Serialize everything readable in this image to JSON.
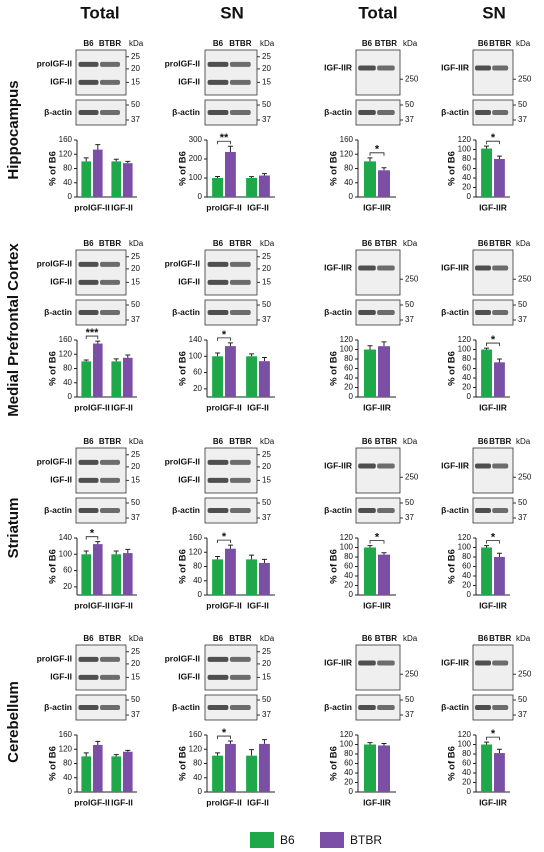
{
  "header": {
    "columns": [
      "Total",
      "SN",
      "Total",
      "SN"
    ]
  },
  "rows": [
    "Hippocampus",
    "Medial Prefrontal Cortex",
    "Striatum",
    "Cerebellum"
  ],
  "blots": [
    {
      "lanes": [
        "B6",
        "BTBR"
      ],
      "unit": "kDa",
      "panels": [
        {
          "labels": [
            "proIGF-II",
            "IGF-II"
          ],
          "markers": [
            25,
            20,
            15
          ]
        },
        {
          "labels": [
            "β-actin"
          ],
          "markers": [
            50,
            37
          ]
        }
      ]
    },
    {
      "lanes": [
        "B6",
        "BTBR"
      ],
      "unit": "kDa",
      "panels": [
        {
          "labels": [
            "proIGF-II",
            "IGF-II"
          ],
          "markers": [
            25,
            20,
            15
          ]
        },
        {
          "labels": [
            "β-actin"
          ],
          "markers": [
            50,
            37
          ]
        }
      ]
    },
    {
      "lanes": [
        "B6",
        "BTBR"
      ],
      "unit": "kDa",
      "panels": [
        {
          "labels": [
            "IGF-IIR"
          ],
          "markers": [
            250
          ]
        },
        {
          "labels": [
            "β-actin"
          ],
          "markers": [
            50,
            37
          ]
        }
      ]
    },
    {
      "lanes": [
        "B6",
        "BTBR"
      ],
      "unit": "kDa",
      "panels": [
        {
          "labels": [
            "IGF-IIR"
          ],
          "markers": [
            250
          ]
        },
        {
          "labels": [
            "β-actin"
          ],
          "markers": [
            50,
            37
          ]
        }
      ]
    },
    {
      "lanes": [
        "B6",
        "BTBR"
      ],
      "unit": "kDa",
      "panels": [
        {
          "labels": [
            "proIGF-II",
            "IGF-II"
          ],
          "markers": [
            25,
            20,
            15
          ]
        },
        {
          "labels": [
            "β-actin"
          ],
          "markers": [
            50,
            37
          ]
        }
      ]
    },
    {
      "lanes": [
        "B6",
        "BTBR"
      ],
      "unit": "kDa",
      "panels": [
        {
          "labels": [
            "proIGF-II",
            "IGF-II"
          ],
          "markers": [
            25,
            20,
            15
          ]
        },
        {
          "labels": [
            "β-actin"
          ],
          "markers": [
            50,
            37
          ]
        }
      ]
    },
    {
      "lanes": [
        "B6",
        "BTBR"
      ],
      "unit": "kDa",
      "panels": [
        {
          "labels": [
            "IGF-IIR"
          ],
          "markers": [
            250
          ]
        },
        {
          "labels": [
            "β-actin"
          ],
          "markers": [
            50,
            37
          ]
        }
      ]
    },
    {
      "lanes": [
        "B6",
        "BTBR"
      ],
      "unit": "kDa",
      "panels": [
        {
          "labels": [
            "IGF-IIR"
          ],
          "markers": [
            250
          ]
        },
        {
          "labels": [
            "β-actin"
          ],
          "markers": [
            50,
            37
          ]
        }
      ]
    },
    {
      "lanes": [
        "B6",
        "BTBR"
      ],
      "unit": "kDa",
      "panels": [
        {
          "labels": [
            "proIGF-II",
            "IGF-II"
          ],
          "markers": [
            25,
            20,
            15
          ]
        },
        {
          "labels": [
            "β-actin"
          ],
          "markers": [
            50,
            37
          ]
        }
      ]
    },
    {
      "lanes": [
        "B6",
        "BTBR"
      ],
      "unit": "kDa",
      "panels": [
        {
          "labels": [
            "proIGF-II",
            "IGF-II"
          ],
          "markers": [
            25,
            20,
            15
          ]
        },
        {
          "labels": [
            "β-actin"
          ],
          "markers": [
            50,
            37
          ]
        }
      ]
    },
    {
      "lanes": [
        "B6",
        "BTBR"
      ],
      "unit": "kDa",
      "panels": [
        {
          "labels": [
            "IGF-IIR"
          ],
          "markers": [
            250
          ]
        },
        {
          "labels": [
            "β-actin"
          ],
          "markers": [
            50,
            37
          ]
        }
      ]
    },
    {
      "lanes": [
        "B6",
        "BTBR"
      ],
      "unit": "kDa",
      "panels": [
        {
          "labels": [
            "IGF-IIR"
          ],
          "markers": [
            250
          ]
        },
        {
          "labels": [
            "β-actin"
          ],
          "markers": [
            50,
            37
          ]
        }
      ]
    },
    {
      "lanes": [
        "B6",
        "BTBR"
      ],
      "unit": "kDa",
      "panels": [
        {
          "labels": [
            "proIGF-II",
            "IGF-II"
          ],
          "markers": [
            25,
            20,
            15
          ]
        },
        {
          "labels": [
            "β-actin"
          ],
          "markers": [
            50,
            37
          ]
        }
      ]
    },
    {
      "lanes": [
        "B6",
        "BTBR"
      ],
      "unit": "kDa",
      "panels": [
        {
          "labels": [
            "proIGF-II",
            "IGF-II"
          ],
          "markers": [
            25,
            20,
            15
          ]
        },
        {
          "labels": [
            "β-actin"
          ],
          "markers": [
            50,
            37
          ]
        }
      ]
    },
    {
      "lanes": [
        "B6",
        "BTBR"
      ],
      "unit": "kDa",
      "panels": [
        {
          "labels": [
            "IGF-IIR"
          ],
          "markers": [
            250
          ]
        },
        {
          "labels": [
            "β-actin"
          ],
          "markers": [
            50,
            37
          ]
        }
      ]
    },
    {
      "lanes": [
        "B6",
        "BTBR"
      ],
      "unit": "kDa",
      "panels": [
        {
          "labels": [
            "IGF-IIR"
          ],
          "markers": [
            250
          ]
        },
        {
          "labels": [
            "β-actin"
          ],
          "markers": [
            50,
            37
          ]
        }
      ]
    }
  ],
  "chart_data": [
    {
      "type": "bar",
      "ylabel": "% of B6",
      "categories": [
        "proIGF-II",
        "IGF-II"
      ],
      "series": [
        {
          "name": "B6",
          "color": "#1fa84a",
          "values": [
            100,
            100
          ],
          "errors": [
            10,
            6
          ]
        },
        {
          "name": "BTBR",
          "color": "#7b4fa6",
          "values": [
            133,
            95
          ],
          "errors": [
            14,
            5
          ]
        }
      ],
      "significance": [
        null,
        null
      ],
      "ylim": [
        0,
        160
      ],
      "yticks": [
        0,
        40,
        80,
        120,
        160
      ]
    },
    {
      "type": "bar",
      "ylabel": "% of B6",
      "categories": [
        "proIGF-II",
        "IGF-II"
      ],
      "series": [
        {
          "name": "B6",
          "color": "#1fa84a",
          "values": [
            100,
            100
          ],
          "errors": [
            8,
            7
          ]
        },
        {
          "name": "BTBR",
          "color": "#7b4fa6",
          "values": [
            237,
            113
          ],
          "errors": [
            30,
            10
          ]
        }
      ],
      "significance": [
        "**",
        null
      ],
      "ylim": [
        0,
        300
      ],
      "yticks": [
        0,
        100,
        200,
        300
      ]
    },
    {
      "type": "bar",
      "ylabel": "% of B6",
      "categories": [
        "IGF-IIR"
      ],
      "series": [
        {
          "name": "B6",
          "color": "#1fa84a",
          "values": [
            100
          ],
          "errors": [
            10
          ]
        },
        {
          "name": "BTBR",
          "color": "#7b4fa6",
          "values": [
            75
          ],
          "errors": [
            7
          ]
        }
      ],
      "significance": [
        "*"
      ],
      "ylim": [
        0,
        160
      ],
      "yticks": [
        0,
        40,
        80,
        120,
        160
      ]
    },
    {
      "type": "bar",
      "ylabel": "% of B6",
      "categories": [
        "IGF-IIR"
      ],
      "series": [
        {
          "name": "B6",
          "color": "#1fa84a",
          "values": [
            102
          ],
          "errors": [
            5
          ]
        },
        {
          "name": "BTBR",
          "color": "#7b4fa6",
          "values": [
            80
          ],
          "errors": [
            6
          ]
        }
      ],
      "significance": [
        "*"
      ],
      "ylim": [
        0,
        120
      ],
      "yticks": [
        0,
        20,
        40,
        60,
        80,
        100,
        120
      ]
    },
    {
      "type": "bar",
      "ylabel": "% of B6",
      "categories": [
        "proIGF-II",
        "IGF-II"
      ],
      "series": [
        {
          "name": "B6",
          "color": "#1fa84a",
          "values": [
            100,
            100
          ],
          "errors": [
            4,
            7
          ]
        },
        {
          "name": "BTBR",
          "color": "#7b4fa6",
          "values": [
            150,
            110
          ],
          "errors": [
            7,
            8
          ]
        }
      ],
      "significance": [
        "***",
        null
      ],
      "ylim": [
        0,
        160
      ],
      "yticks": [
        0,
        40,
        80,
        120,
        160
      ]
    },
    {
      "type": "bar",
      "ylabel": "% of B6",
      "categories": [
        "proIGF-II",
        "IGF-II"
      ],
      "series": [
        {
          "name": "B6",
          "color": "#1fa84a",
          "values": [
            100,
            100
          ],
          "errors": [
            8,
            6
          ]
        },
        {
          "name": "BTBR",
          "color": "#7b4fa6",
          "values": [
            125,
            88
          ],
          "errors": [
            8,
            9
          ]
        }
      ],
      "significance": [
        "*",
        null
      ],
      "ylim": [
        0,
        140
      ],
      "yticks": [
        20,
        60,
        100,
        140
      ]
    },
    {
      "type": "bar",
      "ylabel": "% of B6",
      "categories": [
        "IGF-IIR"
      ],
      "series": [
        {
          "name": "B6",
          "color": "#1fa84a",
          "values": [
            100
          ],
          "errors": [
            8
          ]
        },
        {
          "name": "BTBR",
          "color": "#7b4fa6",
          "values": [
            107
          ],
          "errors": [
            9
          ]
        }
      ],
      "significance": [
        null
      ],
      "ylim": [
        0,
        120
      ],
      "yticks": [
        0,
        20,
        40,
        60,
        80,
        100,
        120
      ]
    },
    {
      "type": "bar",
      "ylabel": "% of B6",
      "categories": [
        "IGF-IIR"
      ],
      "series": [
        {
          "name": "B6",
          "color": "#1fa84a",
          "values": [
            100
          ],
          "errors": [
            3
          ]
        },
        {
          "name": "BTBR",
          "color": "#7b4fa6",
          "values": [
            73
          ],
          "errors": [
            7
          ]
        }
      ],
      "significance": [
        "*"
      ],
      "ylim": [
        0,
        120
      ],
      "yticks": [
        0,
        20,
        40,
        60,
        80,
        100,
        120
      ]
    },
    {
      "type": "bar",
      "ylabel": "% of B6",
      "categories": [
        "proIGF-II",
        "IGF-II"
      ],
      "series": [
        {
          "name": "B6",
          "color": "#1fa84a",
          "values": [
            100,
            100
          ],
          "errors": [
            8,
            8
          ]
        },
        {
          "name": "BTBR",
          "color": "#7b4fa6",
          "values": [
            125,
            103
          ],
          "errors": [
            6,
            9
          ]
        }
      ],
      "significance": [
        "*",
        null
      ],
      "ylim": [
        0,
        140
      ],
      "yticks": [
        20,
        60,
        100,
        140
      ]
    },
    {
      "type": "bar",
      "ylabel": "% of B6",
      "categories": [
        "proIGF-II",
        "IGF-II"
      ],
      "series": [
        {
          "name": "B6",
          "color": "#1fa84a",
          "values": [
            100,
            100
          ],
          "errors": [
            8,
            12
          ]
        },
        {
          "name": "BTBR",
          "color": "#7b4fa6",
          "values": [
            130,
            90
          ],
          "errors": [
            10,
            10
          ]
        }
      ],
      "significance": [
        "*",
        null
      ],
      "ylim": [
        0,
        160
      ],
      "yticks": [
        0,
        40,
        80,
        120,
        160
      ]
    },
    {
      "type": "bar",
      "ylabel": "% of B6",
      "categories": [
        "IGF-IIR"
      ],
      "series": [
        {
          "name": "B6",
          "color": "#1fa84a",
          "values": [
            100
          ],
          "errors": [
            4
          ]
        },
        {
          "name": "BTBR",
          "color": "#7b4fa6",
          "values": [
            85
          ],
          "errors": [
            4
          ]
        }
      ],
      "significance": [
        "*"
      ],
      "ylim": [
        0,
        120
      ],
      "yticks": [
        0,
        20,
        40,
        60,
        80,
        100,
        120
      ]
    },
    {
      "type": "bar",
      "ylabel": "% of B6",
      "categories": [
        "IGF-IIR"
      ],
      "series": [
        {
          "name": "B6",
          "color": "#1fa84a",
          "values": [
            100
          ],
          "errors": [
            4
          ]
        },
        {
          "name": "BTBR",
          "color": "#7b4fa6",
          "values": [
            80
          ],
          "errors": [
            8
          ]
        }
      ],
      "significance": [
        "*"
      ],
      "ylim": [
        0,
        120
      ],
      "yticks": [
        0,
        20,
        40,
        60,
        80,
        100,
        120
      ]
    },
    {
      "type": "bar",
      "ylabel": "% of B6",
      "categories": [
        "proIGF-II",
        "IGF-II"
      ],
      "series": [
        {
          "name": "B6",
          "color": "#1fa84a",
          "values": [
            100,
            100
          ],
          "errors": [
            10,
            5
          ]
        },
        {
          "name": "BTBR",
          "color": "#7b4fa6",
          "values": [
            132,
            113
          ],
          "errors": [
            10,
            4
          ]
        }
      ],
      "significance": [
        null,
        null
      ],
      "ylim": [
        0,
        160
      ],
      "yticks": [
        0,
        40,
        80,
        120,
        160
      ]
    },
    {
      "type": "bar",
      "ylabel": "% of B6",
      "categories": [
        "proIGF-II",
        "IGF-II"
      ],
      "series": [
        {
          "name": "B6",
          "color": "#1fa84a",
          "values": [
            102,
            102
          ],
          "errors": [
            8,
            17
          ]
        },
        {
          "name": "BTBR",
          "color": "#7b4fa6",
          "values": [
            135,
            135
          ],
          "errors": [
            8,
            12
          ]
        }
      ],
      "significance": [
        "*",
        null
      ],
      "ylim": [
        0,
        160
      ],
      "yticks": [
        0,
        40,
        80,
        120,
        160
      ]
    },
    {
      "type": "bar",
      "ylabel": "% of B6",
      "categories": [
        "IGF-IIR"
      ],
      "series": [
        {
          "name": "B6",
          "color": "#1fa84a",
          "values": [
            100
          ],
          "errors": [
            4
          ]
        },
        {
          "name": "BTBR",
          "color": "#7b4fa6",
          "values": [
            98
          ],
          "errors": [
            4
          ]
        }
      ],
      "significance": [
        null
      ],
      "ylim": [
        0,
        120
      ],
      "yticks": [
        0,
        20,
        40,
        60,
        80,
        100,
        120
      ]
    },
    {
      "type": "bar",
      "ylabel": "% of B6",
      "categories": [
        "IGF-IIR"
      ],
      "series": [
        {
          "name": "B6",
          "color": "#1fa84a",
          "values": [
            100
          ],
          "errors": [
            5
          ]
        },
        {
          "name": "BTBR",
          "color": "#7b4fa6",
          "values": [
            82
          ],
          "errors": [
            8
          ]
        }
      ],
      "significance": [
        "*"
      ],
      "ylim": [
        0,
        120
      ],
      "yticks": [
        0,
        20,
        40,
        60,
        80,
        100,
        120
      ]
    }
  ]
}
